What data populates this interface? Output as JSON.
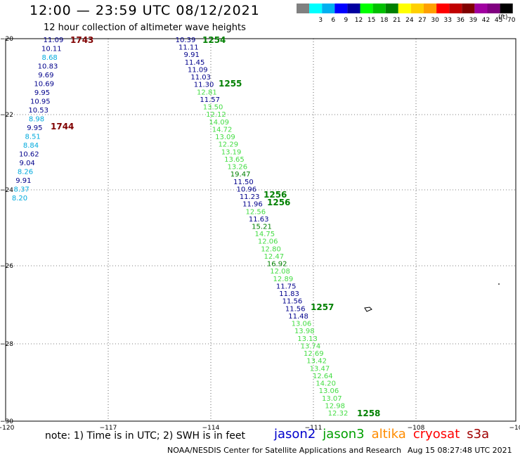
{
  "title": "12:00 — 23:59 UTC 08/12/2021",
  "subtitle": "12 hour collection of altimeter wave heights",
  "color_scale": {
    "unit": "(ft)",
    "swatches": [
      {
        "label": "",
        "color": "#808080"
      },
      {
        "label": "3",
        "color": "#00ffff"
      },
      {
        "label": "6",
        "color": "#00b0f0"
      },
      {
        "label": "9",
        "color": "#0000ff"
      },
      {
        "label": "12",
        "color": "#0000a0"
      },
      {
        "label": "15",
        "color": "#00ff00"
      },
      {
        "label": "18",
        "color": "#00c000"
      },
      {
        "label": "21",
        "color": "#008000"
      },
      {
        "label": "24",
        "color": "#ffff00"
      },
      {
        "label": "27",
        "color": "#ffd000"
      },
      {
        "label": "30",
        "color": "#ffa000"
      },
      {
        "label": "33",
        "color": "#ff0000"
      },
      {
        "label": "36",
        "color": "#c00000"
      },
      {
        "label": "39",
        "color": "#800000"
      },
      {
        "label": "42",
        "color": "#a000a0"
      },
      {
        "label": "45",
        "color": "#800080"
      },
      {
        "label": "70",
        "color": "#000000"
      }
    ]
  },
  "axes": {
    "x_ticks": [
      "−120",
      "−117",
      "−114",
      "−111",
      "−108",
      "−10"
    ],
    "y_ticks": [
      "−20",
      "−22",
      "−24",
      "−26",
      "−28",
      "−30"
    ]
  },
  "colors": {
    "darkblue": "#00008b",
    "lightgreen": "#44dd44",
    "green": "#008000",
    "cyan": "#00aadd",
    "maroon": "#800000"
  },
  "track_left": [
    {
      "v": "11.09",
      "c": "darkblue"
    },
    {
      "v": "10.11",
      "c": "darkblue"
    },
    {
      "v": "8.68",
      "c": "cyan"
    },
    {
      "v": "10.83",
      "c": "darkblue"
    },
    {
      "v": "9.69",
      "c": "darkblue"
    },
    {
      "v": "10.69",
      "c": "darkblue"
    },
    {
      "v": "9.95",
      "c": "darkblue"
    },
    {
      "v": "10.95",
      "c": "darkblue"
    },
    {
      "v": "10.53",
      "c": "darkblue"
    },
    {
      "v": "8.98",
      "c": "cyan"
    },
    {
      "v": "9.95",
      "c": "darkblue"
    },
    {
      "v": "8.51",
      "c": "cyan"
    },
    {
      "v": "8.84",
      "c": "cyan"
    },
    {
      "v": "10.62",
      "c": "darkblue"
    },
    {
      "v": "9.04",
      "c": "darkblue"
    },
    {
      "v": "8.26",
      "c": "cyan"
    },
    {
      "v": "9.91",
      "c": "darkblue"
    },
    {
      "v": "8.37",
      "c": "cyan"
    },
    {
      "v": "8.20",
      "c": "cyan"
    }
  ],
  "track_right": [
    {
      "v": "10.39",
      "c": "darkblue"
    },
    {
      "v": "11.11",
      "c": "darkblue"
    },
    {
      "v": "9.91",
      "c": "darkblue"
    },
    {
      "v": "11.45",
      "c": "darkblue"
    },
    {
      "v": "11.09",
      "c": "darkblue"
    },
    {
      "v": "11.03",
      "c": "darkblue"
    },
    {
      "v": "11.30",
      "c": "darkblue"
    },
    {
      "v": "12.81",
      "c": "lightgreen"
    },
    {
      "v": "11.57",
      "c": "darkblue"
    },
    {
      "v": "13.50",
      "c": "lightgreen"
    },
    {
      "v": "12.12",
      "c": "lightgreen"
    },
    {
      "v": "14.09",
      "c": "lightgreen"
    },
    {
      "v": "14.72",
      "c": "lightgreen"
    },
    {
      "v": "13.09",
      "c": "lightgreen"
    },
    {
      "v": "12.29",
      "c": "lightgreen"
    },
    {
      "v": "13.19",
      "c": "lightgreen"
    },
    {
      "v": "13.65",
      "c": "lightgreen"
    },
    {
      "v": "13.26",
      "c": "lightgreen"
    },
    {
      "v": "19.47",
      "c": "green"
    },
    {
      "v": "11.50",
      "c": "darkblue"
    },
    {
      "v": "10.96",
      "c": "darkblue"
    },
    {
      "v": "11.23",
      "c": "darkblue"
    },
    {
      "v": "11.96",
      "c": "darkblue"
    },
    {
      "v": "12.56",
      "c": "lightgreen"
    },
    {
      "v": "11.63",
      "c": "darkblue"
    },
    {
      "v": "15.21",
      "c": "green"
    },
    {
      "v": "14.75",
      "c": "lightgreen"
    },
    {
      "v": "12.06",
      "c": "lightgreen"
    },
    {
      "v": "12.80",
      "c": "lightgreen"
    },
    {
      "v": "12.47",
      "c": "lightgreen"
    },
    {
      "v": "16.92",
      "c": "green"
    },
    {
      "v": "12.08",
      "c": "lightgreen"
    },
    {
      "v": "12.89",
      "c": "lightgreen"
    },
    {
      "v": "11.75",
      "c": "darkblue"
    },
    {
      "v": "11.83",
      "c": "darkblue"
    },
    {
      "v": "11.56",
      "c": "darkblue"
    },
    {
      "v": "11.56",
      "c": "darkblue"
    },
    {
      "v": "11.48",
      "c": "darkblue"
    },
    {
      "v": "13.06",
      "c": "lightgreen"
    },
    {
      "v": "13.98",
      "c": "lightgreen"
    },
    {
      "v": "13.13",
      "c": "lightgreen"
    },
    {
      "v": "13.74",
      "c": "lightgreen"
    },
    {
      "v": "12.69",
      "c": "lightgreen"
    },
    {
      "v": "13.42",
      "c": "lightgreen"
    },
    {
      "v": "13.47",
      "c": "lightgreen"
    },
    {
      "v": "12.64",
      "c": "lightgreen"
    },
    {
      "v": "14.20",
      "c": "lightgreen"
    },
    {
      "v": "13.06",
      "c": "lightgreen"
    },
    {
      "v": "13.07",
      "c": "lightgreen"
    },
    {
      "v": "12.98",
      "c": "lightgreen"
    },
    {
      "v": "12.32",
      "c": "lightgreen"
    }
  ],
  "time_labels_left": [
    {
      "t": "1743",
      "c": "maroon"
    },
    {
      "t": "1744",
      "c": "maroon"
    }
  ],
  "time_labels_right": [
    {
      "t": "1254",
      "c": "green"
    },
    {
      "t": "1255",
      "c": "green"
    },
    {
      "t": "1256",
      "c": "green"
    },
    {
      "t": "1256",
      "c": "green"
    },
    {
      "t": "1257",
      "c": "green"
    },
    {
      "t": "1258",
      "c": "green"
    }
  ],
  "note": "note:  1) Time is in UTC; 2) SWH is in feet",
  "satellites": [
    {
      "name": "jason2",
      "color": "#0000cc"
    },
    {
      "name": "jason3",
      "color": "#00a000"
    },
    {
      "name": "altika",
      "color": "#ff8c00"
    },
    {
      "name": "cryosat",
      "color": "#ff0000"
    },
    {
      "name": "s3a",
      "color": "#a00000"
    }
  ],
  "credit": "NOAA/NESDIS Center for Satellite Applications and Research",
  "credit_time": "Aug 15 08:27:48 UTC 2021"
}
